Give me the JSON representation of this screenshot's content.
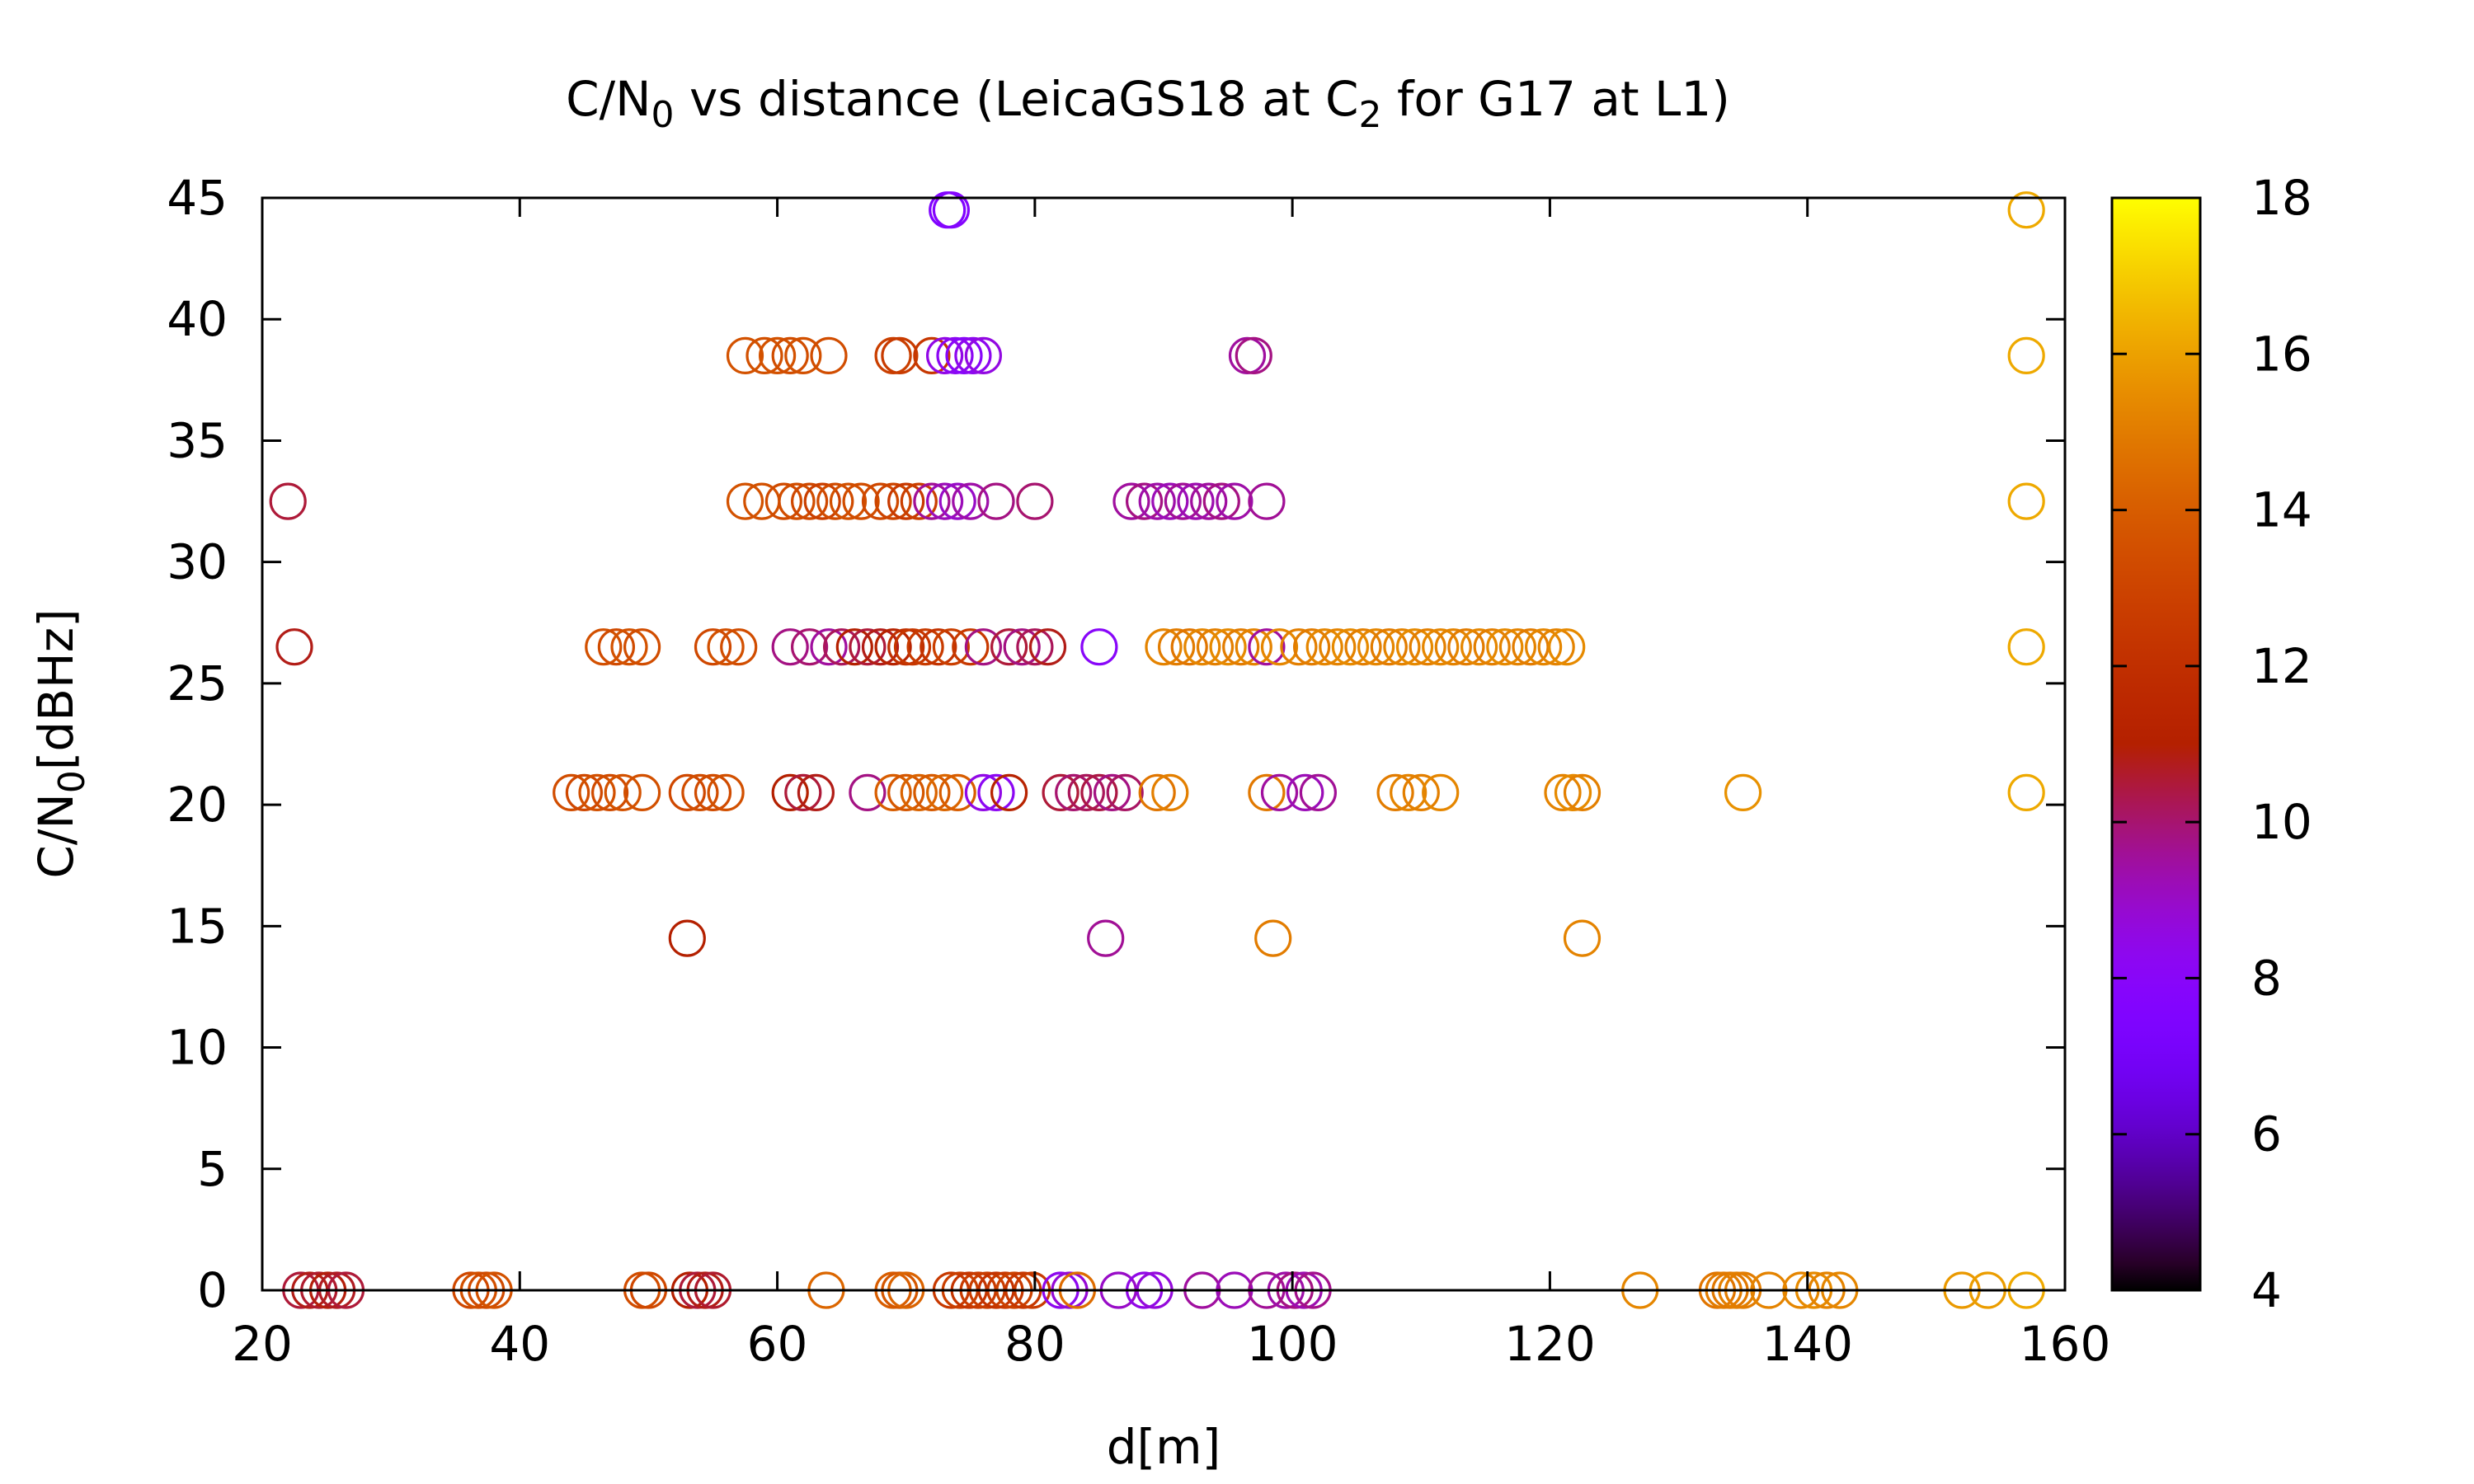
{
  "chart_data": {
    "type": "scatter",
    "title": {
      "prefix": "C/N",
      "sub1": "0",
      "middle": " vs distance (LeicaGS18 at C",
      "sub2": "2",
      "suffix": " for G17 at L1)"
    },
    "xlabel": "d[m]",
    "ylabel": {
      "prefix": "C/N",
      "sub": "0",
      "suffix": "[dBHz]"
    },
    "xlim": [
      20,
      160
    ],
    "ylim": [
      0,
      45
    ],
    "x_ticks": [
      20,
      40,
      60,
      80,
      100,
      120,
      140,
      160
    ],
    "y_ticks": [
      0,
      5,
      10,
      15,
      20,
      25,
      30,
      35,
      40,
      45
    ],
    "colorbar": {
      "range": [
        4,
        18
      ],
      "ticks": [
        4,
        6,
        8,
        10,
        12,
        14,
        16,
        18
      ],
      "palette": "black-blue-purple-red-orange-yellow (gnuplot)"
    },
    "grid": false,
    "legend": "none",
    "series": [
      {
        "y": 44.5,
        "points": [
          [
            73.2,
            7.5
          ],
          [
            73.5,
            7.8
          ],
          [
            157,
            16.2
          ]
        ]
      },
      {
        "y": 38.5,
        "points": [
          [
            57.5,
            13.6
          ],
          [
            59,
            13.5
          ],
          [
            60,
            13.6
          ],
          [
            61,
            13.4
          ],
          [
            62,
            13.5
          ],
          [
            64,
            13.4
          ],
          [
            69,
            12.8
          ],
          [
            69.5,
            12.6
          ],
          [
            72,
            12.4
          ],
          [
            73,
            8.5
          ],
          [
            73.8,
            8.2
          ],
          [
            74.5,
            8.0
          ],
          [
            75.2,
            8.3
          ],
          [
            76,
            8.6
          ],
          [
            96.5,
            9.5
          ],
          [
            97,
            9.8
          ],
          [
            157,
            16.2
          ]
        ]
      },
      {
        "y": 32.5,
        "points": [
          [
            22,
            10.5
          ],
          [
            57.5,
            13.6
          ],
          [
            58.8,
            13.5
          ],
          [
            60.5,
            13.3
          ],
          [
            61.5,
            13.4
          ],
          [
            62.5,
            13.2
          ],
          [
            63.5,
            12.8
          ],
          [
            64.5,
            13.3
          ],
          [
            65.5,
            13.5
          ],
          [
            66.5,
            13.4
          ],
          [
            68,
            13.2
          ],
          [
            69,
            13.0
          ],
          [
            70,
            12.5
          ],
          [
            71,
            12.8
          ],
          [
            72,
            9.6
          ],
          [
            73,
            9.2
          ],
          [
            74,
            9.0
          ],
          [
            75,
            9.4
          ],
          [
            77,
            9.8
          ],
          [
            80,
            10.0
          ],
          [
            87.5,
            9.5
          ],
          [
            88.5,
            9.8
          ],
          [
            89.5,
            9.4
          ],
          [
            90.5,
            9.2
          ],
          [
            91.5,
            9.6
          ],
          [
            92.5,
            9.3
          ],
          [
            93.5,
            9.5
          ],
          [
            94.5,
            9.8
          ],
          [
            95.5,
            9.4
          ],
          [
            98,
            9.6
          ],
          [
            157,
            16.2
          ]
        ]
      },
      {
        "y": 26.5,
        "points": [
          [
            22.5,
            10.8
          ],
          [
            46.5,
            13.5
          ],
          [
            47.5,
            13.3
          ],
          [
            48.5,
            13.6
          ],
          [
            49.5,
            13.4
          ],
          [
            55,
            13.2
          ],
          [
            56,
            13.5
          ],
          [
            57,
            13.4
          ],
          [
            61,
            9.8
          ],
          [
            62.5,
            10.0
          ],
          [
            64,
            9.5
          ],
          [
            65,
            10.2
          ],
          [
            66,
            11.0
          ],
          [
            67,
            10.5
          ],
          [
            68,
            10.8
          ],
          [
            69,
            11.2
          ],
          [
            70,
            12.0
          ],
          [
            70.5,
            12.4
          ],
          [
            71.5,
            12.6
          ],
          [
            72.5,
            12.2
          ],
          [
            73.5,
            12.8
          ],
          [
            75,
            12.5
          ],
          [
            76,
            9.8
          ],
          [
            78,
            10.5
          ],
          [
            79,
            9.8
          ],
          [
            80,
            10.2
          ],
          [
            81,
            10.8
          ],
          [
            85,
            8.0
          ],
          [
            90,
            15.2
          ],
          [
            91,
            15.0
          ],
          [
            92,
            14.8
          ],
          [
            93,
            15.3
          ],
          [
            94,
            15.1
          ],
          [
            95,
            15.4
          ],
          [
            96,
            15.0
          ],
          [
            97,
            15.2
          ],
          [
            98,
            9.5
          ],
          [
            99,
            15.3
          ],
          [
            100.5,
            15.1
          ],
          [
            101.5,
            15.0
          ],
          [
            102.5,
            15.3
          ],
          [
            103.5,
            15.2
          ],
          [
            104.5,
            15.4
          ],
          [
            105.5,
            15.1
          ],
          [
            106.5,
            15.3
          ],
          [
            107.5,
            15.0
          ],
          [
            108.5,
            15.2
          ],
          [
            109.5,
            15.4
          ],
          [
            110.5,
            15.1
          ],
          [
            111.5,
            15.3
          ],
          [
            112.5,
            15.2
          ],
          [
            113.5,
            15.0
          ],
          [
            114.5,
            15.3
          ],
          [
            115.5,
            15.1
          ],
          [
            116.5,
            15.4
          ],
          [
            117.5,
            15.2
          ],
          [
            118.5,
            15.0
          ],
          [
            119.5,
            15.3
          ],
          [
            120.5,
            15.2
          ],
          [
            121.3,
            15.4
          ],
          [
            157,
            16.2
          ]
        ]
      },
      {
        "y": 20.5,
        "points": [
          [
            44,
            13.4
          ],
          [
            45,
            13.2
          ],
          [
            46,
            13.5
          ],
          [
            47,
            13.3
          ],
          [
            48,
            13.6
          ],
          [
            49.5,
            13.5
          ],
          [
            53,
            13.2
          ],
          [
            54,
            13.4
          ],
          [
            55,
            13.3
          ],
          [
            56,
            13.5
          ],
          [
            61,
            11.0
          ],
          [
            62,
            10.5
          ],
          [
            63,
            10.8
          ],
          [
            67,
            9.8
          ],
          [
            69,
            14.0
          ],
          [
            70,
            13.8
          ],
          [
            71,
            14.2
          ],
          [
            72,
            13.9
          ],
          [
            73,
            14.3
          ],
          [
            74,
            14.0
          ],
          [
            76,
            8.5
          ],
          [
            77,
            8.2
          ],
          [
            78,
            11.2
          ],
          [
            82,
            10.5
          ],
          [
            83,
            10.0
          ],
          [
            84,
            10.2
          ],
          [
            85,
            10.4
          ],
          [
            86,
            9.8
          ],
          [
            87,
            10.1
          ],
          [
            89.5,
            14.8
          ],
          [
            90.5,
            15.1
          ],
          [
            98,
            14.9
          ],
          [
            99,
            9.5
          ],
          [
            101,
            9.2
          ],
          [
            102,
            9.6
          ],
          [
            108,
            15.0
          ],
          [
            109,
            15.2
          ],
          [
            110,
            15.1
          ],
          [
            111.5,
            15.3
          ],
          [
            121,
            15.2
          ],
          [
            121.8,
            15.4
          ],
          [
            122.5,
            15.1
          ],
          [
            135,
            15.6
          ],
          [
            157,
            16.2
          ]
        ]
      },
      {
        "y": 14.5,
        "points": [
          [
            53,
            11.0
          ],
          [
            85.5,
            9.6
          ],
          [
            98.5,
            15.0
          ],
          [
            122.5,
            15.2
          ]
        ]
      },
      {
        "y": 0,
        "points": [
          [
            23,
            10.5
          ],
          [
            23.7,
            10.8
          ],
          [
            24.4,
            10.6
          ],
          [
            25.1,
            10.9
          ],
          [
            25.8,
            10.7
          ],
          [
            26.5,
            10.5
          ],
          [
            36.2,
            13.2
          ],
          [
            36.8,
            13.5
          ],
          [
            37.4,
            13.3
          ],
          [
            38,
            13.6
          ],
          [
            49.5,
            13.4
          ],
          [
            50,
            13.2
          ],
          [
            53.2,
            11.0
          ],
          [
            53.8,
            10.5
          ],
          [
            54.4,
            10.8
          ],
          [
            55,
            10.6
          ],
          [
            63.8,
            14.3
          ],
          [
            69,
            14.0
          ],
          [
            69.5,
            13.8
          ],
          [
            70,
            14.2
          ],
          [
            73.5,
            12.5
          ],
          [
            74.2,
            12.8
          ],
          [
            74.9,
            12.3
          ],
          [
            75.6,
            12.6
          ],
          [
            76.3,
            12.7
          ],
          [
            77,
            12.2
          ],
          [
            77.7,
            12.5
          ],
          [
            78.4,
            12.9
          ],
          [
            79.1,
            12.4
          ],
          [
            79.8,
            12.6
          ],
          [
            82,
            8.3
          ],
          [
            82.7,
            8.8
          ],
          [
            83.3,
            14.5
          ],
          [
            86.5,
            9.0
          ],
          [
            88.5,
            8.5
          ],
          [
            89.3,
            8.7
          ],
          [
            93,
            9.5
          ],
          [
            95.5,
            9.2
          ],
          [
            98,
            9.6
          ],
          [
            99.5,
            9.4
          ],
          [
            100.2,
            9.8
          ],
          [
            100.9,
            9.3
          ],
          [
            101.6,
            9.7
          ],
          [
            127,
            15.3
          ],
          [
            133,
            14.8
          ],
          [
            133.5,
            15.0
          ],
          [
            134,
            14.9
          ],
          [
            134.5,
            15.1
          ],
          [
            135,
            15.0
          ],
          [
            137,
            15.2
          ],
          [
            139.5,
            15.3
          ],
          [
            140.5,
            15.4
          ],
          [
            141.5,
            15.2
          ],
          [
            142.5,
            15.3
          ],
          [
            152,
            15.8
          ],
          [
            154,
            15.9
          ],
          [
            157,
            16.2
          ]
        ]
      }
    ]
  }
}
